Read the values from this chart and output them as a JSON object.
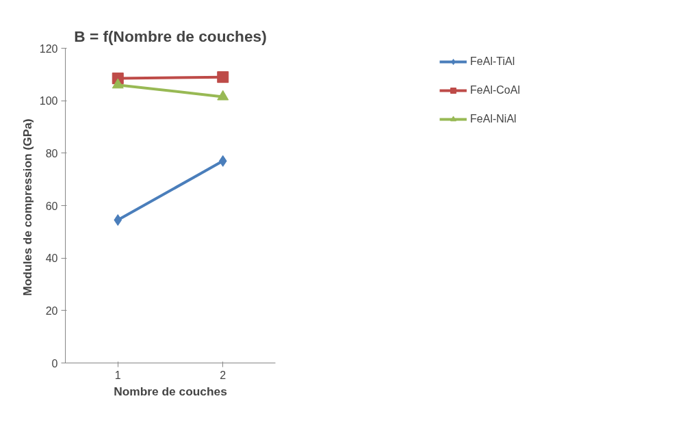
{
  "chart_data": {
    "type": "line",
    "title": "B = f(Nombre de couches)",
    "xlabel": "Nombre de couches",
    "ylabel": "Modules de compression  (GPa)",
    "categories": [
      "1",
      "2"
    ],
    "series": [
      {
        "name": "FeAl-TiAl",
        "color": "#4a7ebb",
        "values": [
          54.5,
          77
        ],
        "marker": "diamond"
      },
      {
        "name": "FeAl-CoAl",
        "color": "#be4b48",
        "values": [
          108.5,
          109
        ],
        "marker": "square"
      },
      {
        "name": "FeAl-NiAl",
        "color": "#98b954",
        "values": [
          106,
          101.5
        ],
        "marker": "triangle"
      }
    ],
    "ylim": [
      0,
      120
    ],
    "yticks": [
      0,
      20,
      40,
      60,
      80,
      100,
      120
    ],
    "grid": false,
    "legend": "top right"
  }
}
